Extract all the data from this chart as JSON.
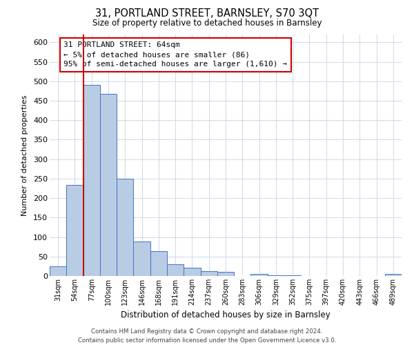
{
  "title": "31, PORTLAND STREET, BARNSLEY, S70 3QT",
  "subtitle": "Size of property relative to detached houses in Barnsley",
  "xlabel": "Distribution of detached houses by size in Barnsley",
  "ylabel": "Number of detached properties",
  "bar_labels": [
    "31sqm",
    "54sqm",
    "77sqm",
    "100sqm",
    "123sqm",
    "146sqm",
    "168sqm",
    "191sqm",
    "214sqm",
    "237sqm",
    "260sqm",
    "283sqm",
    "306sqm",
    "329sqm",
    "352sqm",
    "375sqm",
    "397sqm",
    "420sqm",
    "443sqm",
    "466sqm",
    "489sqm"
  ],
  "bar_values": [
    25,
    233,
    490,
    468,
    250,
    88,
    63,
    30,
    22,
    13,
    10,
    0,
    5,
    2,
    1,
    0,
    0,
    0,
    0,
    0,
    5
  ],
  "bar_color": "#b8cce4",
  "bar_edge_color": "#4472c4",
  "redline_after_index": 1,
  "highlight_color": "#cc0000",
  "ylim": [
    0,
    620
  ],
  "yticks": [
    0,
    50,
    100,
    150,
    200,
    250,
    300,
    350,
    400,
    450,
    500,
    550,
    600
  ],
  "annotation_title": "31 PORTLAND STREET: 64sqm",
  "annotation_line1": "← 5% of detached houses are smaller (86)",
  "annotation_line2": "95% of semi-detached houses are larger (1,610) →",
  "footer_line1": "Contains HM Land Registry data © Crown copyright and database right 2024.",
  "footer_line2": "Contains public sector information licensed under the Open Government Licence v3.0.",
  "background_color": "#ffffff",
  "grid_color": "#cdd8ea"
}
